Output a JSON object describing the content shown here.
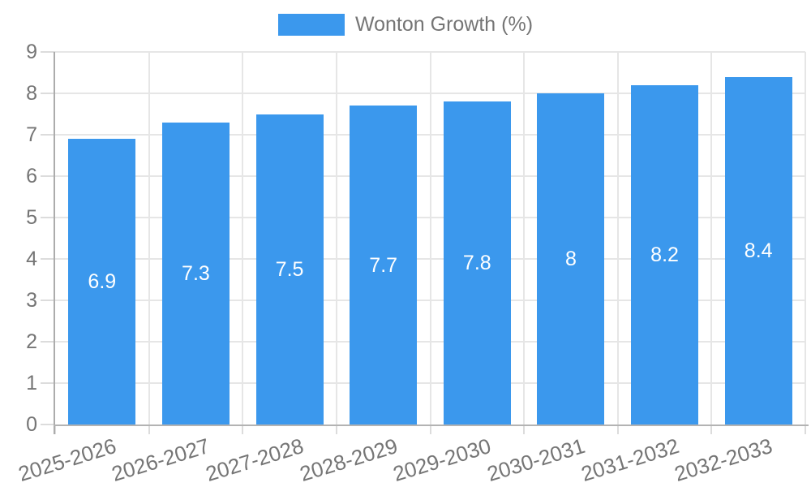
{
  "legend": {
    "label": "Wonton Growth (%)"
  },
  "chart_data": {
    "type": "bar",
    "title": "Wonton Growth (%)",
    "legend_position": "top",
    "categories": [
      "2025-2026",
      "2026-2027",
      "2027-2028",
      "2028-2029",
      "2029-2030",
      "2030-2031",
      "2031-2032",
      "2032-2033"
    ],
    "series": [
      {
        "name": "Wonton Growth (%)",
        "values": [
          6.9,
          7.3,
          7.5,
          7.7,
          7.8,
          8,
          8.2,
          8.4
        ]
      }
    ],
    "values": [
      6.9,
      7.3,
      7.5,
      7.7,
      7.8,
      8,
      8.2,
      8.4
    ],
    "value_labels": [
      "6.9",
      "7.3",
      "7.5",
      "7.7",
      "7.8",
      "8",
      "8.2",
      "8.4"
    ],
    "xlabel": "",
    "ylabel": "",
    "ylim": [
      0,
      9
    ],
    "y_ticks": [
      0,
      1,
      2,
      3,
      4,
      5,
      6,
      7,
      8,
      9
    ],
    "grid": true,
    "x_label_rotation_deg": -17,
    "colors": {
      "bar": "#3B98ED",
      "axis_text": "#757575",
      "value_label": "#FFFFFF",
      "gridline": "#E6E6E6",
      "tick": "#DCDCDC",
      "axis_line_y": "#ACACAC",
      "axis_line_x": "#B3B3B3",
      "background": "#FFFFFF"
    }
  }
}
